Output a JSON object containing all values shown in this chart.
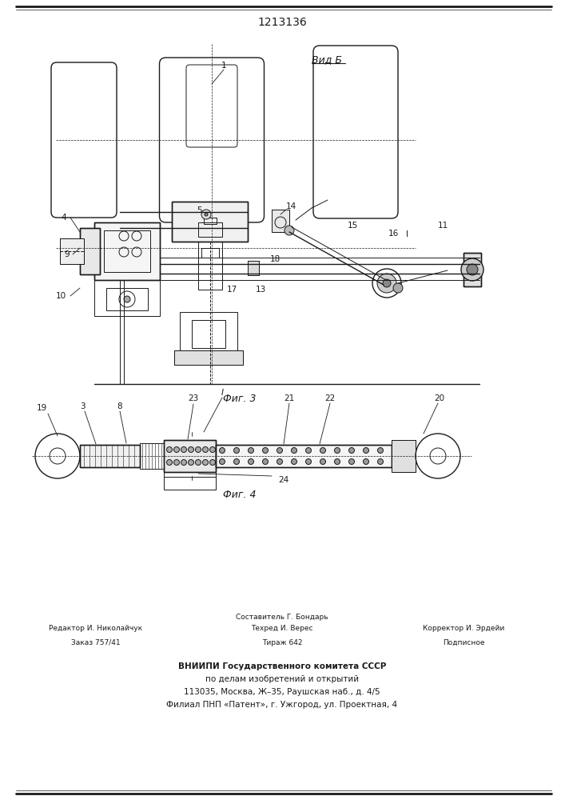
{
  "patent_number": "1213136",
  "fig3_label": "Фиг. 3",
  "fig4_label": "Фиг. 4",
  "vid_b_label": "Вид Б",
  "bg_color": "#ffffff",
  "line_color": "#1a1a1a",
  "footer": {
    "left_col": [
      "Редактор И. Николайчук",
      "Заказ 757/41"
    ],
    "mid_col_top": "Составитель Г. Бондарь",
    "mid_col": [
      "Техред И. Верес",
      "Тираж 642"
    ],
    "right_col": [
      "Корректор И. Эрдейи",
      "Подписное"
    ],
    "org_line1": "ВНИИПИ Государственного комитета СССР",
    "org_line2": "по делам изобретений и открытий",
    "org_line3": "113035, Москва, Ж–35, Раушская наб., д. 4/5",
    "org_line4": "Филиал ПНП «Патент», г. Ужгород, ул. Проектная, 4"
  }
}
